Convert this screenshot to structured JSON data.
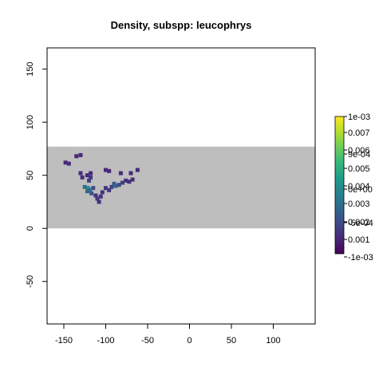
{
  "chart_data": {
    "type": "heatmap",
    "title": "Density, subspp: leucophrys",
    "xlabel": "",
    "ylabel": "",
    "xlim": [
      -170,
      150
    ],
    "ylim": [
      -90,
      170
    ],
    "x_ticks": [
      "-150",
      "-100",
      "-50",
      "0",
      "50",
      "100"
    ],
    "y_ticks": [
      "-50",
      "0",
      "50",
      "100",
      "150"
    ],
    "grid": false,
    "background_band": {
      "y_from": 0,
      "y_to": 77,
      "color": "#bebebe"
    },
    "palette": "viridis",
    "legend_position": "right",
    "legend_labels": [
      "1e-03",
      "0.007",
      "0.006",
      "0.005",
      "0.004",
      "0.003",
      "0.002",
      "0.001",
      "-1e-03",
      "9e-04",
      "0e+00",
      "-5e-04"
    ],
    "points": [
      {
        "x": -123,
        "y": 37,
        "value": 0.0095
      },
      {
        "x": -121,
        "y": 38,
        "value": 0.0045
      },
      {
        "x": -119,
        "y": 36,
        "value": 0.003
      },
      {
        "x": -125,
        "y": 39,
        "value": 0.003
      },
      {
        "x": -122,
        "y": 35,
        "value": 0.0025
      },
      {
        "x": -117,
        "y": 33,
        "value": 0.002
      },
      {
        "x": -115,
        "y": 38,
        "value": 0.0015
      },
      {
        "x": -120,
        "y": 45,
        "value": 0.001
      },
      {
        "x": -118,
        "y": 48,
        "value": 0.0008
      },
      {
        "x": -90,
        "y": 42,
        "value": 0.002
      },
      {
        "x": -88,
        "y": 40,
        "value": 0.0025
      },
      {
        "x": -84,
        "y": 41,
        "value": 0.0015
      },
      {
        "x": -80,
        "y": 43,
        "value": 0.001
      },
      {
        "x": -93,
        "y": 39,
        "value": 0.0012
      },
      {
        "x": -110,
        "y": 28,
        "value": 0.0008
      },
      {
        "x": -106,
        "y": 30,
        "value": 0.0006
      },
      {
        "x": -104,
        "y": 34,
        "value": 0.0006
      },
      {
        "x": -100,
        "y": 38,
        "value": 0.0007
      },
      {
        "x": -96,
        "y": 36,
        "value": 0.0006
      },
      {
        "x": -76,
        "y": 45,
        "value": 0.0005
      },
      {
        "x": -72,
        "y": 44,
        "value": 0.0004
      },
      {
        "x": -68,
        "y": 46,
        "value": 0.0004
      },
      {
        "x": -62,
        "y": 55,
        "value": 0.0003
      },
      {
        "x": -70,
        "y": 52,
        "value": 0.0003
      },
      {
        "x": -82,
        "y": 52,
        "value": 0.0003
      },
      {
        "x": -100,
        "y": 55,
        "value": 0.0002
      },
      {
        "x": -96,
        "y": 54,
        "value": 0.0002
      },
      {
        "x": -130,
        "y": 52,
        "value": 0.0003
      },
      {
        "x": -128,
        "y": 48,
        "value": 0.0004
      },
      {
        "x": -122,
        "y": 50,
        "value": 0.0004
      },
      {
        "x": -118,
        "y": 52,
        "value": 0.0003
      },
      {
        "x": -148,
        "y": 62,
        "value": 0.0003
      },
      {
        "x": -144,
        "y": 61,
        "value": 0.0003
      },
      {
        "x": -135,
        "y": 68,
        "value": 0.0002
      },
      {
        "x": -130,
        "y": 69,
        "value": 0.0002
      },
      {
        "x": -108,
        "y": 25,
        "value": 0.0005
      },
      {
        "x": -112,
        "y": 31,
        "value": 0.0006
      }
    ]
  }
}
